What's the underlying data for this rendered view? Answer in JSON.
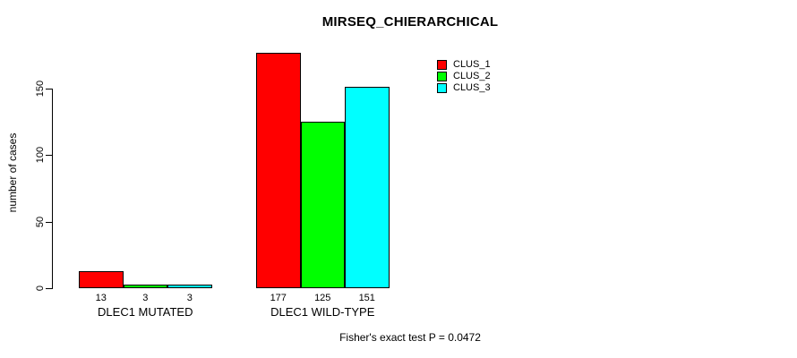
{
  "chart_data": {
    "type": "bar",
    "title": "MIRSEQ_CHIERARCHICAL",
    "xlabel": "",
    "ylabel": "number of cases",
    "categories": [
      "DLEC1 MUTATED",
      "DLEC1 WILD-TYPE"
    ],
    "series": [
      {
        "name": "CLUS_1",
        "color": "#ff0000",
        "values": [
          13,
          177
        ]
      },
      {
        "name": "CLUS_2",
        "color": "#00ff00",
        "values": [
          3,
          125
        ]
      },
      {
        "name": "CLUS_3",
        "color": "#00ffff",
        "values": [
          3,
          151
        ]
      }
    ],
    "bar_value_labels": [
      [
        "13",
        "3",
        "3"
      ],
      [
        "177",
        "125",
        "151"
      ]
    ],
    "yticks": [
      0,
      50,
      100,
      150
    ],
    "ylim": [
      0,
      177
    ],
    "grid": false,
    "legend_position": "top-right",
    "annotation": "Fisher's exact test P = 0.0472",
    "bar_border_color": "#000000",
    "background_color": "#ffffff"
  }
}
